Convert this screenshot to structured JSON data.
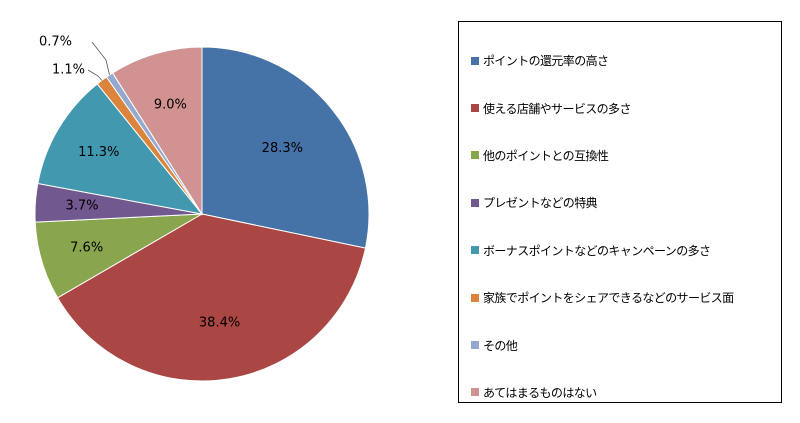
{
  "chart_data": {
    "type": "pie",
    "start_angle_deg": 0,
    "direction": "clockwise",
    "legend_position": "right",
    "slices": [
      {
        "label": "ポイントの還元率の高さ",
        "value": 28.3,
        "display": "28.3%",
        "color": "#4572A7"
      },
      {
        "label": "使える店舗やサービスの多さ",
        "value": 38.4,
        "display": "38.4%",
        "color": "#AA4643"
      },
      {
        "label": "他のポイントとの互換性",
        "value": 7.6,
        "display": "7.6%",
        "color": "#89A54E"
      },
      {
        "label": "プレゼントなどの特典",
        "value": 3.7,
        "display": "3.7%",
        "color": "#71588F"
      },
      {
        "label": "ボーナスポイントなどのキャンペーンの多さ",
        "value": 11.3,
        "display": "11.3%",
        "color": "#4198AF"
      },
      {
        "label": "家族でポイントをシェアできるなどのサービス面",
        "value": 1.1,
        "display": "1.1%",
        "color": "#DB843D"
      },
      {
        "label": "その他",
        "value": 0.7,
        "display": "0.7%",
        "color": "#93A9CF"
      },
      {
        "label": "あてはまるものはない",
        "value": 9.0,
        "display": "9.0%",
        "color": "#D19392"
      }
    ]
  }
}
